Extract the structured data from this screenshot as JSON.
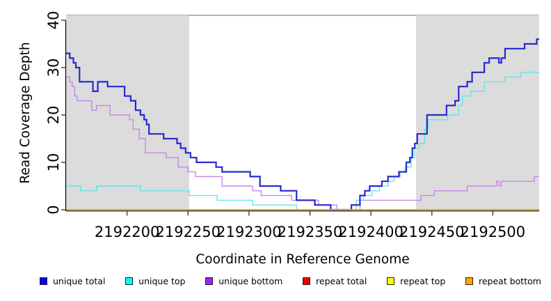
{
  "chart_data": {
    "type": "line",
    "step": "after",
    "title": "",
    "xlabel": "Coordinate in Reference Genome",
    "ylabel": "Read Coverage Depth",
    "xlim": [
      2192150,
      2192538
    ],
    "ylim": [
      0,
      40
    ],
    "x_ticks": [
      2192200,
      2192250,
      2192300,
      2192350,
      2192400,
      2192450,
      2192500
    ],
    "y_ticks": [
      0,
      10,
      20,
      30,
      40
    ],
    "grid": false,
    "legend_position": "bottom",
    "plot_background": "#ffffff",
    "shaded_region_color": "#DCDCDC",
    "top_border_color": "#979797",
    "axis_color": "#000000",
    "shaded_regions": [
      {
        "from": 2192150,
        "to": 2192251
      },
      {
        "from": 2192437,
        "to": 2192538
      }
    ],
    "series": [
      {
        "name": "unique total",
        "legend_color": "#0000EE",
        "line_color": "#2828D0",
        "line_width": 2.2,
        "points": [
          [
            2192150,
            33
          ],
          [
            2192153,
            32
          ],
          [
            2192156,
            31
          ],
          [
            2192158,
            30
          ],
          [
            2192161,
            27
          ],
          [
            2192172,
            25
          ],
          [
            2192176,
            27
          ],
          [
            2192184,
            26
          ],
          [
            2192198,
            24
          ],
          [
            2192203,
            23
          ],
          [
            2192207,
            21
          ],
          [
            2192211,
            20
          ],
          [
            2192214,
            19
          ],
          [
            2192216,
            18
          ],
          [
            2192218,
            16
          ],
          [
            2192230,
            15
          ],
          [
            2192241,
            14
          ],
          [
            2192244,
            13
          ],
          [
            2192248,
            12
          ],
          [
            2192252,
            11
          ],
          [
            2192257,
            10
          ],
          [
            2192273,
            9
          ],
          [
            2192278,
            8
          ],
          [
            2192301,
            7
          ],
          [
            2192309,
            5
          ],
          [
            2192326,
            4
          ],
          [
            2192339,
            2
          ],
          [
            2192354,
            1
          ],
          [
            2192367,
            0
          ],
          [
            2192384,
            1
          ],
          [
            2192391,
            3
          ],
          [
            2192395,
            4
          ],
          [
            2192399,
            5
          ],
          [
            2192409,
            6
          ],
          [
            2192414,
            7
          ],
          [
            2192423,
            8
          ],
          [
            2192429,
            10
          ],
          [
            2192432,
            11
          ],
          [
            2192434,
            13
          ],
          [
            2192436,
            14
          ],
          [
            2192438,
            16
          ],
          [
            2192446,
            20
          ],
          [
            2192462,
            22
          ],
          [
            2192469,
            23
          ],
          [
            2192472,
            26
          ],
          [
            2192479,
            27
          ],
          [
            2192483,
            29
          ],
          [
            2192493,
            31
          ],
          [
            2192497,
            32
          ],
          [
            2192505,
            31
          ],
          [
            2192507,
            32
          ],
          [
            2192510,
            34
          ],
          [
            2192526,
            35
          ],
          [
            2192536,
            36
          ]
        ]
      },
      {
        "name": "unique top",
        "legend_color": "#00FFFF",
        "line_color": "#63E5EA",
        "line_width": 1.4,
        "points": [
          [
            2192150,
            5
          ],
          [
            2192162,
            4
          ],
          [
            2192175,
            5
          ],
          [
            2192211,
            4
          ],
          [
            2192251,
            3
          ],
          [
            2192274,
            2
          ],
          [
            2192303,
            1
          ],
          [
            2192339,
            0
          ],
          [
            2192388,
            2
          ],
          [
            2192394,
            3
          ],
          [
            2192401,
            4
          ],
          [
            2192407,
            5
          ],
          [
            2192414,
            6
          ],
          [
            2192419,
            7
          ],
          [
            2192424,
            8
          ],
          [
            2192428,
            9
          ],
          [
            2192433,
            11
          ],
          [
            2192436,
            13
          ],
          [
            2192440,
            14
          ],
          [
            2192444,
            17
          ],
          [
            2192447,
            19
          ],
          [
            2192463,
            20
          ],
          [
            2192472,
            22
          ],
          [
            2192475,
            24
          ],
          [
            2192482,
            25
          ],
          [
            2192493,
            27
          ],
          [
            2192510,
            28
          ],
          [
            2192523,
            29
          ]
        ]
      },
      {
        "name": "unique bottom",
        "legend_color": "#A020F0",
        "line_color": "#C387E9",
        "line_width": 1.4,
        "points": [
          [
            2192150,
            28
          ],
          [
            2192153,
            27
          ],
          [
            2192155,
            26
          ],
          [
            2192157,
            24
          ],
          [
            2192159,
            23
          ],
          [
            2192171,
            21
          ],
          [
            2192175,
            22
          ],
          [
            2192186,
            20
          ],
          [
            2192202,
            19
          ],
          [
            2192205,
            17
          ],
          [
            2192210,
            15
          ],
          [
            2192215,
            12
          ],
          [
            2192232,
            11
          ],
          [
            2192242,
            9
          ],
          [
            2192250,
            8
          ],
          [
            2192256,
            7
          ],
          [
            2192278,
            5
          ],
          [
            2192303,
            4
          ],
          [
            2192310,
            3
          ],
          [
            2192335,
            2
          ],
          [
            2192357,
            1
          ],
          [
            2192372,
            0
          ],
          [
            2192391,
            2
          ],
          [
            2192441,
            3
          ],
          [
            2192452,
            4
          ],
          [
            2192479,
            5
          ],
          [
            2192503,
            6
          ],
          [
            2192505,
            5
          ],
          [
            2192507,
            6
          ],
          [
            2192534,
            7
          ]
        ]
      },
      {
        "name": "repeat total",
        "legend_color": "#EE0000",
        "line_color": "#DD0000",
        "line_width": 1.4,
        "points": [
          [
            2192150,
            0
          ]
        ]
      },
      {
        "name": "repeat top",
        "legend_color": "#FFFF00",
        "line_color": "#FFFF00",
        "line_width": 1.4,
        "points": [
          [
            2192150,
            0
          ]
        ]
      },
      {
        "name": "repeat bottom",
        "legend_color": "#FFA500",
        "line_color": "#FF9E00",
        "line_width": 1.6,
        "points": [
          [
            2192150,
            0
          ]
        ]
      }
    ]
  }
}
